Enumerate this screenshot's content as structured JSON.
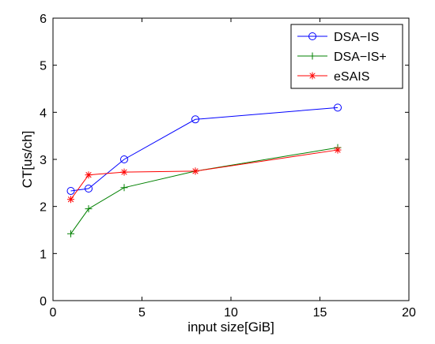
{
  "chart_data": {
    "type": "line",
    "xlabel": "input size[GiB]",
    "ylabel": "CT[us/ch]",
    "xlim": [
      0,
      20
    ],
    "ylim": [
      0,
      6
    ],
    "xticks": [
      "0",
      "5",
      "10",
      "15",
      "20"
    ],
    "yticks": [
      "0",
      "1",
      "2",
      "3",
      "4",
      "5",
      "6"
    ],
    "grid": false,
    "legend_position": "top-right",
    "series": [
      {
        "name": "DSA−IS",
        "color": "#0000ff",
        "marker": "circle",
        "points": [
          [
            1,
            2.33
          ],
          [
            2,
            2.38
          ],
          [
            4,
            3.0
          ],
          [
            8,
            3.85
          ],
          [
            16,
            4.1
          ]
        ]
      },
      {
        "name": "DSA−IS+",
        "color": "#008000",
        "marker": "plus",
        "points": [
          [
            1,
            1.42
          ],
          [
            2,
            1.95
          ],
          [
            4,
            2.4
          ],
          [
            8,
            2.75
          ],
          [
            16,
            3.25
          ]
        ]
      },
      {
        "name": "eSAIS",
        "color": "#ff0000",
        "marker": "asterisk",
        "points": [
          [
            1,
            2.15
          ],
          [
            2,
            2.67
          ],
          [
            4,
            2.73
          ],
          [
            8,
            2.75
          ],
          [
            16,
            3.2
          ]
        ]
      }
    ]
  }
}
